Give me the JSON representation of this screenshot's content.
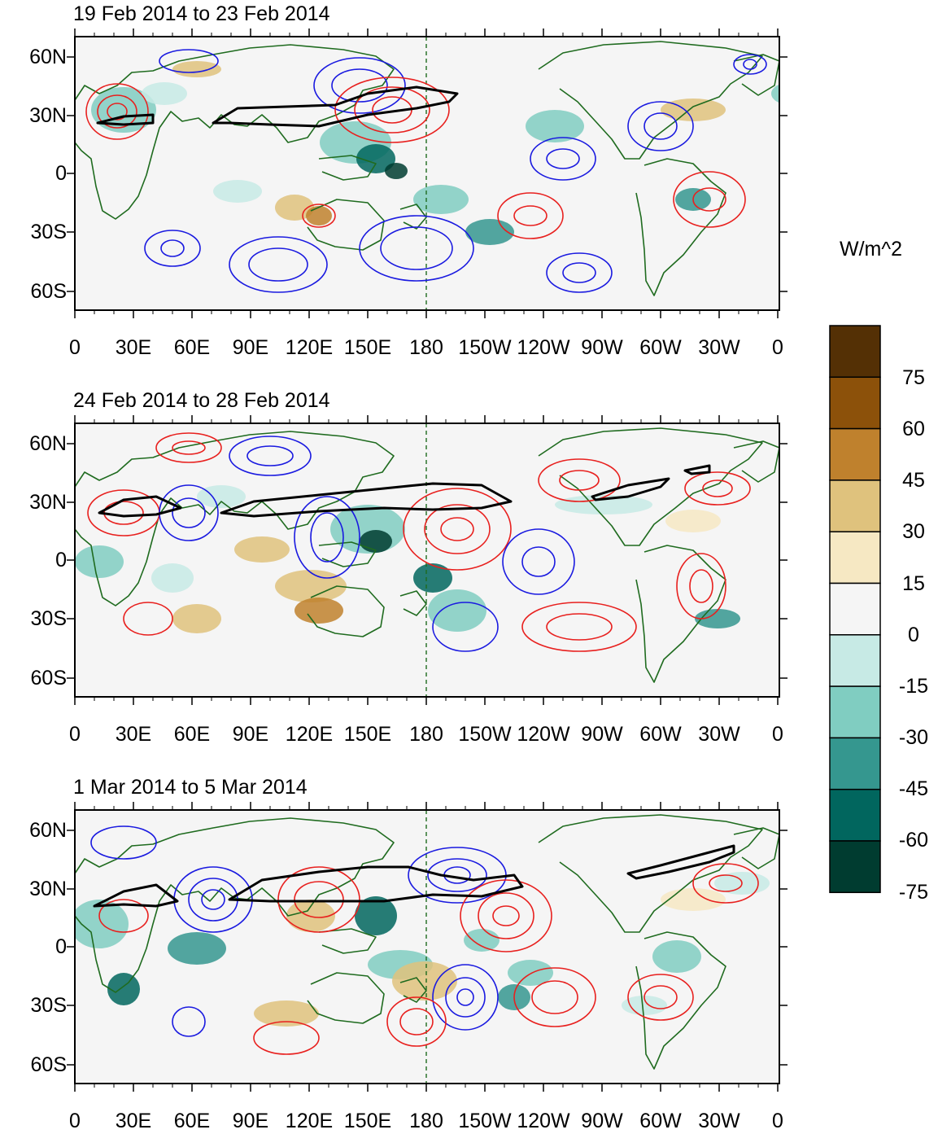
{
  "panels": [
    {
      "title": "19 Feb 2014 to 23 Feb 2014",
      "lat_labels": [
        "60N",
        "30N",
        "0",
        "30S",
        "60S"
      ],
      "lon_labels": [
        "0",
        "30E",
        "60E",
        "90E",
        "120E",
        "150E",
        "180",
        "150W",
        "120W",
        "90W",
        "60W",
        "30W",
        "0"
      ]
    },
    {
      "title": "24 Feb 2014 to 28 Feb 2014",
      "lat_labels": [
        "60N",
        "30N",
        "0",
        "30S",
        "60S"
      ],
      "lon_labels": [
        "0",
        "30E",
        "60E",
        "90E",
        "120E",
        "150E",
        "180",
        "150W",
        "120W",
        "90W",
        "60W",
        "30W",
        "0"
      ]
    },
    {
      "title": "1 Mar 2014 to 5 Mar 2014",
      "lat_labels": [
        "60N",
        "30N",
        "0",
        "30S",
        "60S"
      ],
      "lon_labels": [
        "0",
        "30E",
        "60E",
        "90E",
        "120E",
        "150E",
        "180",
        "150W",
        "120W",
        "90W",
        "60W",
        "30W",
        "0"
      ]
    }
  ],
  "colorbar": {
    "unit": "W/m^2",
    "labels": [
      "75",
      "60",
      "45",
      "30",
      "15",
      "0",
      "-15",
      "-30",
      "-45",
      "-60",
      "-75"
    ],
    "colors": [
      "#543005",
      "#8c510a",
      "#bf812d",
      "#dfc27d",
      "#f6e8c3",
      "#f5f5f5",
      "#f5f5f5",
      "#c7eae5",
      "#80cdc1",
      "#35978f",
      "#01665e",
      "#003c30"
    ]
  },
  "style": {
    "land_outline": "#1f6b1f",
    "positive_contour": "#e8201e",
    "negative_contour": "#1a1ae0",
    "jet_outline": "#000000",
    "ocean_background": "#f5f5f5",
    "dateline": "#1f6b1f"
  }
}
